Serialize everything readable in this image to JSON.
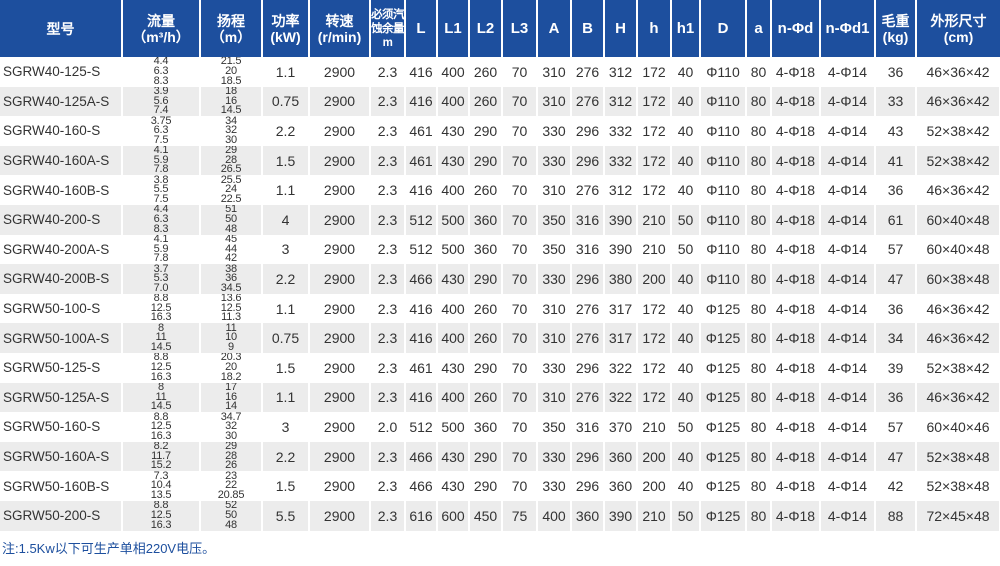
{
  "colors": {
    "header_bg": "#1d4f9e",
    "row_alt": "#ececec",
    "note": "#1d4f9e"
  },
  "headers": [
    "型号",
    "流量\n（m³/h）",
    "扬程\n（m）",
    "功率\n(kW)",
    "转速\n(r/min)",
    "必须汽\n蚀余量\nm",
    "L",
    "L1",
    "L2",
    "L3",
    "A",
    "B",
    "H",
    "h",
    "h1",
    "D",
    "a",
    "n-Φd",
    "n-Φd1",
    "毛重\n(kg)",
    "外形尺寸\n(cm)"
  ],
  "rows": [
    {
      "model": "SGRW40-125-S",
      "flow": [
        "4.4",
        "6.3",
        "8.3"
      ],
      "head": [
        "21.5",
        "20",
        "18.5"
      ],
      "vals": [
        "1.1",
        "2900",
        "2.3",
        "416",
        "400",
        "260",
        "70",
        "310",
        "276",
        "312",
        "172",
        "40",
        "Φ110",
        "80",
        "4-Φ18",
        "4-Φ14",
        "36",
        "46×36×42"
      ]
    },
    {
      "model": "SGRW40-125A-S",
      "flow": [
        "3.9",
        "5.6",
        "7.4"
      ],
      "head": [
        "18",
        "16",
        "14.5"
      ],
      "vals": [
        "0.75",
        "2900",
        "2.3",
        "416",
        "400",
        "260",
        "70",
        "310",
        "276",
        "312",
        "172",
        "40",
        "Φ110",
        "80",
        "4-Φ18",
        "4-Φ14",
        "33",
        "46×36×42"
      ]
    },
    {
      "model": "SGRW40-160-S",
      "flow": [
        "3.75",
        "6.3",
        "7.5"
      ],
      "head": [
        "34",
        "32",
        "30"
      ],
      "vals": [
        "2.2",
        "2900",
        "2.3",
        "461",
        "430",
        "290",
        "70",
        "330",
        "296",
        "332",
        "172",
        "40",
        "Φ110",
        "80",
        "4-Φ18",
        "4-Φ14",
        "43",
        "52×38×42"
      ]
    },
    {
      "model": "SGRW40-160A-S",
      "flow": [
        "4.1",
        "5.9",
        "7.8"
      ],
      "head": [
        "29",
        "28",
        "26.5"
      ],
      "vals": [
        "1.5",
        "2900",
        "2.3",
        "461",
        "430",
        "290",
        "70",
        "330",
        "296",
        "332",
        "172",
        "40",
        "Φ110",
        "80",
        "4-Φ18",
        "4-Φ14",
        "41",
        "52×38×42"
      ]
    },
    {
      "model": "SGRW40-160B-S",
      "flow": [
        "3.8",
        "5.5",
        "7.5"
      ],
      "head": [
        "25.5",
        "24",
        "22.5"
      ],
      "vals": [
        "1.1",
        "2900",
        "2.3",
        "416",
        "400",
        "260",
        "70",
        "310",
        "276",
        "312",
        "172",
        "40",
        "Φ110",
        "80",
        "4-Φ18",
        "4-Φ14",
        "36",
        "46×36×42"
      ]
    },
    {
      "model": "SGRW40-200-S",
      "flow": [
        "4.4",
        "6.3",
        "8.3"
      ],
      "head": [
        "51",
        "50",
        "48"
      ],
      "vals": [
        "4",
        "2900",
        "2.3",
        "512",
        "500",
        "360",
        "70",
        "350",
        "316",
        "390",
        "210",
        "50",
        "Φ110",
        "80",
        "4-Φ18",
        "4-Φ14",
        "61",
        "60×40×48"
      ]
    },
    {
      "model": "SGRW40-200A-S",
      "flow": [
        "4.1",
        "5.9",
        "7.8"
      ],
      "head": [
        "45",
        "44",
        "42"
      ],
      "vals": [
        "3",
        "2900",
        "2.3",
        "512",
        "500",
        "360",
        "70",
        "350",
        "316",
        "390",
        "210",
        "50",
        "Φ110",
        "80",
        "4-Φ18",
        "4-Φ14",
        "57",
        "60×40×48"
      ]
    },
    {
      "model": "SGRW40-200B-S",
      "flow": [
        "3.7",
        "5.3",
        "7.0"
      ],
      "head": [
        "38",
        "36",
        "34.5"
      ],
      "vals": [
        "2.2",
        "2900",
        "2.3",
        "466",
        "430",
        "290",
        "70",
        "330",
        "296",
        "380",
        "200",
        "40",
        "Φ110",
        "80",
        "4-Φ18",
        "4-Φ14",
        "47",
        "60×38×48"
      ]
    },
    {
      "model": "SGRW50-100-S",
      "flow": [
        "8.8",
        "12.5",
        "16.3"
      ],
      "head": [
        "13.6",
        "12.5",
        "11.3"
      ],
      "vals": [
        "1.1",
        "2900",
        "2.3",
        "416",
        "400",
        "260",
        "70",
        "310",
        "276",
        "317",
        "172",
        "40",
        "Φ125",
        "80",
        "4-Φ18",
        "4-Φ14",
        "36",
        "46×36×42"
      ]
    },
    {
      "model": "SGRW50-100A-S",
      "flow": [
        "8",
        "11",
        "14.5"
      ],
      "head": [
        "11",
        "10",
        "9"
      ],
      "vals": [
        "0.75",
        "2900",
        "2.3",
        "416",
        "400",
        "260",
        "70",
        "310",
        "276",
        "317",
        "172",
        "40",
        "Φ125",
        "80",
        "4-Φ18",
        "4-Φ14",
        "34",
        "46×36×42"
      ]
    },
    {
      "model": "SGRW50-125-S",
      "flow": [
        "8.8",
        "12.5",
        "16.3"
      ],
      "head": [
        "20.3",
        "20",
        "18.2"
      ],
      "vals": [
        "1.5",
        "2900",
        "2.3",
        "461",
        "430",
        "290",
        "70",
        "330",
        "296",
        "322",
        "172",
        "40",
        "Φ125",
        "80",
        "4-Φ18",
        "4-Φ14",
        "39",
        "52×38×42"
      ]
    },
    {
      "model": "SGRW50-125A-S",
      "flow": [
        "8",
        "11",
        "14.5"
      ],
      "head": [
        "17",
        "16",
        "14"
      ],
      "vals": [
        "1.1",
        "2900",
        "2.3",
        "416",
        "400",
        "260",
        "70",
        "310",
        "276",
        "322",
        "172",
        "40",
        "Φ125",
        "80",
        "4-Φ18",
        "4-Φ14",
        "36",
        "46×36×42"
      ]
    },
    {
      "model": "SGRW50-160-S",
      "flow": [
        "8.8",
        "12.5",
        "16.3"
      ],
      "head": [
        "34.7",
        "32",
        "30"
      ],
      "vals": [
        "3",
        "2900",
        "2.0",
        "512",
        "500",
        "360",
        "70",
        "350",
        "316",
        "370",
        "210",
        "50",
        "Φ125",
        "80",
        "4-Φ18",
        "4-Φ14",
        "57",
        "60×40×46"
      ]
    },
    {
      "model": "SGRW50-160A-S",
      "flow": [
        "8.2",
        "11.7",
        "15.2"
      ],
      "head": [
        "29",
        "28",
        "26"
      ],
      "vals": [
        "2.2",
        "2900",
        "2.3",
        "466",
        "430",
        "290",
        "70",
        "330",
        "296",
        "360",
        "200",
        "40",
        "Φ125",
        "80",
        "4-Φ18",
        "4-Φ14",
        "47",
        "52×38×48"
      ]
    },
    {
      "model": "SGRW50-160B-S",
      "flow": [
        "7.3",
        "10.4",
        "13.5"
      ],
      "head": [
        "23",
        "22",
        "20.85"
      ],
      "vals": [
        "1.5",
        "2900",
        "2.3",
        "466",
        "430",
        "290",
        "70",
        "330",
        "296",
        "360",
        "200",
        "40",
        "Φ125",
        "80",
        "4-Φ18",
        "4-Φ14",
        "42",
        "52×38×48"
      ]
    },
    {
      "model": "SGRW50-200-S",
      "flow": [
        "8.8",
        "12.5",
        "16.3"
      ],
      "head": [
        "52",
        "50",
        "48"
      ],
      "vals": [
        "5.5",
        "2900",
        "2.3",
        "616",
        "600",
        "450",
        "75",
        "400",
        "360",
        "390",
        "210",
        "50",
        "Φ125",
        "80",
        "4-Φ18",
        "4-Φ14",
        "88",
        "72×45×48"
      ]
    }
  ],
  "note": "注:1.5Kw以下可生产单相220V电压。"
}
